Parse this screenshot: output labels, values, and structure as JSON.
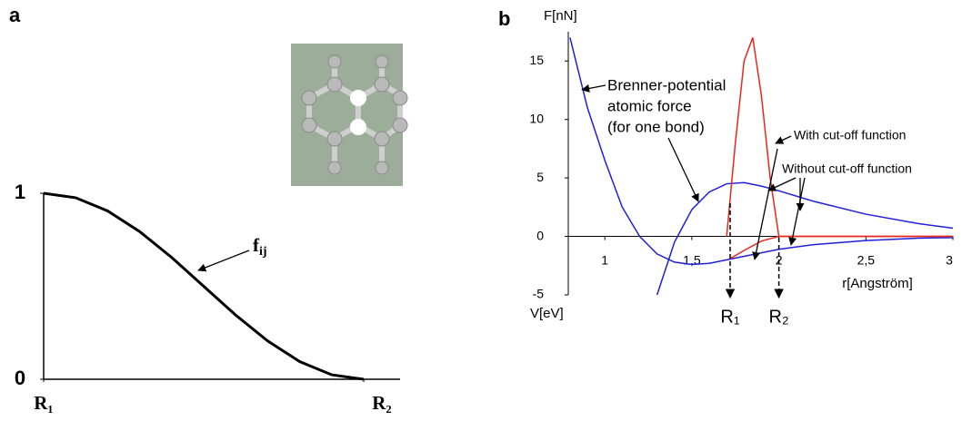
{
  "chart_data": [
    {
      "type": "line",
      "label": "a",
      "color": "#000000",
      "xlim": [
        0,
        1
      ],
      "xticks": [
        {
          "value": 0,
          "label": "R₁"
        },
        {
          "value": 1,
          "label": "R₂"
        }
      ],
      "ylim": [
        0,
        1
      ],
      "yticks": [
        0,
        1
      ],
      "x": [
        0,
        0.1,
        0.2,
        0.3,
        0.4,
        0.5,
        0.6,
        0.7,
        0.8,
        0.9,
        1
      ],
      "values": [
        1,
        0.976,
        0.905,
        0.794,
        0.655,
        0.5,
        0.345,
        0.206,
        0.095,
        0.024,
        0
      ],
      "annotation": {
        "text": "f",
        "subscript": "ij"
      }
    },
    {
      "type": "line",
      "label": "b",
      "xlim": [
        0.79,
        3
      ],
      "xticks": [
        1,
        {
          "value": 1.5,
          "label": "1,5"
        },
        2,
        {
          "value": 2.5,
          "label": "2,5"
        },
        3
      ],
      "ylim": [
        -5,
        17.5
      ],
      "yticks": [
        -5,
        0,
        5,
        10,
        15
      ],
      "y_label": "F[nN]",
      "y_label_bottom": "V[eV]",
      "x_label": "r[Angström]",
      "series": [
        {
          "color": "#1f1fdd",
          "x": [
            0.8,
            0.9,
            1,
            1.1,
            1.2,
            1.3,
            1.4,
            1.5,
            1.6,
            1.7,
            1.8,
            2,
            2.2,
            2.5,
            2.8,
            3
          ],
          "values": [
            17,
            11,
            6.5,
            2.5,
            0,
            -1.5,
            -2.2,
            -2.4,
            -2.3,
            -2,
            -1.7,
            -1.1,
            -0.7,
            -0.35,
            -0.15,
            -0.1
          ]
        },
        {
          "color": "#1f1fdd",
          "x": [
            1.3,
            1.4,
            1.5,
            1.6,
            1.7,
            1.8,
            1.9,
            2,
            2.2,
            2.5,
            2.8,
            3
          ],
          "values": [
            -5,
            -0.5,
            2.3,
            3.8,
            4.5,
            4.6,
            4.3,
            3.9,
            3,
            1.9,
            1.1,
            0.7
          ]
        },
        {
          "color": "#e8281e",
          "x": [
            1.7,
            1.75,
            1.8,
            1.85,
            1.9,
            1.95,
            2,
            2.5,
            3
          ],
          "values": [
            0,
            8,
            15,
            17,
            12,
            5,
            0,
            0,
            0
          ]
        },
        {
          "color": "#e8281e",
          "x": [
            1.72,
            1.8,
            1.9,
            2,
            2.5,
            3
          ],
          "values": [
            -1.9,
            -1.2,
            -0.4,
            0,
            0,
            0
          ]
        }
      ],
      "markers": [
        {
          "value": 1.72,
          "label": "R₁"
        },
        {
          "value": 2,
          "label": "R₂"
        }
      ],
      "annotations": [
        "Brenner-potential",
        "atomic force",
        "(for one bond)",
        "With cut-off function",
        "Without cut-off function"
      ]
    }
  ]
}
